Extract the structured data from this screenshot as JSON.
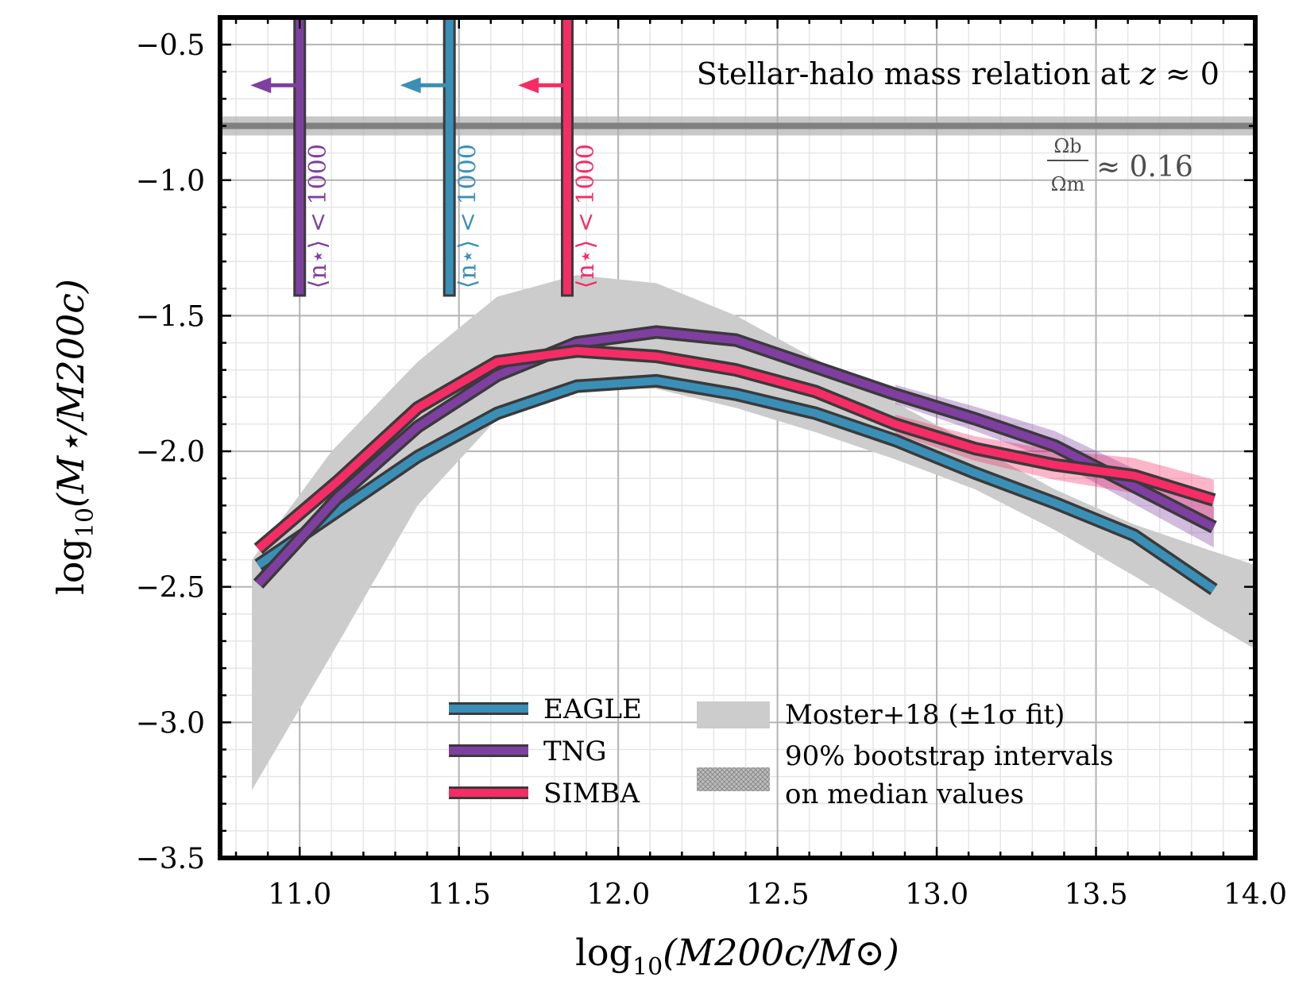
{
  "chart_data": {
    "type": "line",
    "title": "Stellar-halo mass relation at z ≈ 0",
    "xlabel": "log10(M200c/M⊙)",
    "ylabel": "log10(M⋆/M200c)",
    "xlim": [
      10.75,
      14.0
    ],
    "ylim": [
      -3.5,
      -0.4
    ],
    "xticks": [
      11.0,
      11.5,
      12.0,
      12.5,
      13.0,
      13.5,
      14.0
    ],
    "xtick_labels": [
      "11.0",
      "11.5",
      "12.0",
      "12.5",
      "13.0",
      "13.5",
      "14.0"
    ],
    "yticks": [
      -3.5,
      -3.0,
      -2.5,
      -2.0,
      -1.5,
      -1.0,
      -0.5
    ],
    "ytick_labels": [
      "−3.5",
      "−3.0",
      "−2.5",
      "−2.0",
      "−1.5",
      "−1.0",
      "−0.5"
    ],
    "grid": true,
    "legend_position": "bottom-center",
    "x": [
      10.87,
      11.12,
      11.37,
      11.62,
      11.87,
      12.12,
      12.37,
      12.62,
      12.87,
      13.12,
      13.37,
      13.62,
      13.87
    ],
    "series": [
      {
        "name": "EAGLE",
        "color": "#3a8fb7",
        "values": [
          -2.42,
          -2.22,
          -2.02,
          -1.86,
          -1.76,
          -1.74,
          -1.79,
          -1.86,
          -1.96,
          -2.08,
          -2.19,
          -2.31,
          -2.51
        ]
      },
      {
        "name": "TNG",
        "color": "#7f3fa0",
        "values": [
          -2.49,
          -2.17,
          -1.91,
          -1.72,
          -1.6,
          -1.56,
          -1.59,
          -1.69,
          -1.79,
          -1.88,
          -1.98,
          -2.13,
          -2.28
        ]
      },
      {
        "name": "SIMBA",
        "color": "#f52c65",
        "values": [
          -2.36,
          -2.11,
          -1.84,
          -1.67,
          -1.63,
          -1.65,
          -1.7,
          -1.78,
          -1.9,
          -1.99,
          -2.05,
          -2.09,
          -2.18
        ]
      }
    ],
    "moster_band": {
      "name": "Moster+18 (±1σ fit)",
      "x": [
        10.85,
        11.1,
        11.37,
        11.62,
        11.87,
        12.12,
        12.37,
        12.62,
        12.87,
        13.12,
        13.37,
        13.62,
        13.87,
        14.0
      ],
      "upper": [
        -2.4,
        -2.0,
        -1.67,
        -1.43,
        -1.35,
        -1.38,
        -1.5,
        -1.66,
        -1.82,
        -1.98,
        -2.14,
        -2.27,
        -2.37,
        -2.42
      ],
      "lower": [
        -3.25,
        -2.75,
        -2.2,
        -1.88,
        -1.76,
        -1.77,
        -1.84,
        -1.93,
        -2.03,
        -2.14,
        -2.29,
        -2.46,
        -2.64,
        -2.73
      ]
    },
    "bootstrap_label": "90% bootstrap intervals on median values",
    "baryon_fraction": {
      "value": -0.8,
      "label": "Ωb/Ωm ≈ 0.16"
    },
    "resolution_cuts": [
      {
        "series": "TNG",
        "x": 11.0,
        "label": "⟨n⋆⟩ < 1000"
      },
      {
        "series": "EAGLE",
        "x": 11.47,
        "label": "⟨n⋆⟩ < 1000"
      },
      {
        "series": "SIMBA",
        "x": 11.84,
        "label": "⟨n⋆⟩ < 1000"
      }
    ]
  },
  "text": {
    "title_main": "Stellar-halo mass relation at ",
    "title_z": "z",
    "title_approx": " ≈ 0",
    "baryon_num": "Ωb",
    "baryon_den": "Ωm",
    "baryon_val": "≈ 0.16",
    "legend_eagle": "EAGLE",
    "legend_tng": "TNG",
    "legend_simba": "SIMBA",
    "legend_moster": "Moster+18 (±1σ fit)",
    "legend_boot_1": "90% bootstrap intervals",
    "legend_boot_2": "on median values",
    "xlabel_log": "log",
    "xlabel_sub": "10",
    "xlabel_rest": "(M200c/M⊙)",
    "ylabel_log": "log",
    "ylabel_sub": "10",
    "ylabel_rest": "(M⋆/M200c)"
  },
  "colors": {
    "eagle": "#3a8fb7",
    "tng": "#7f3fa0",
    "simba": "#f52c65",
    "band": "#cccccc",
    "baryon": "#808080"
  }
}
